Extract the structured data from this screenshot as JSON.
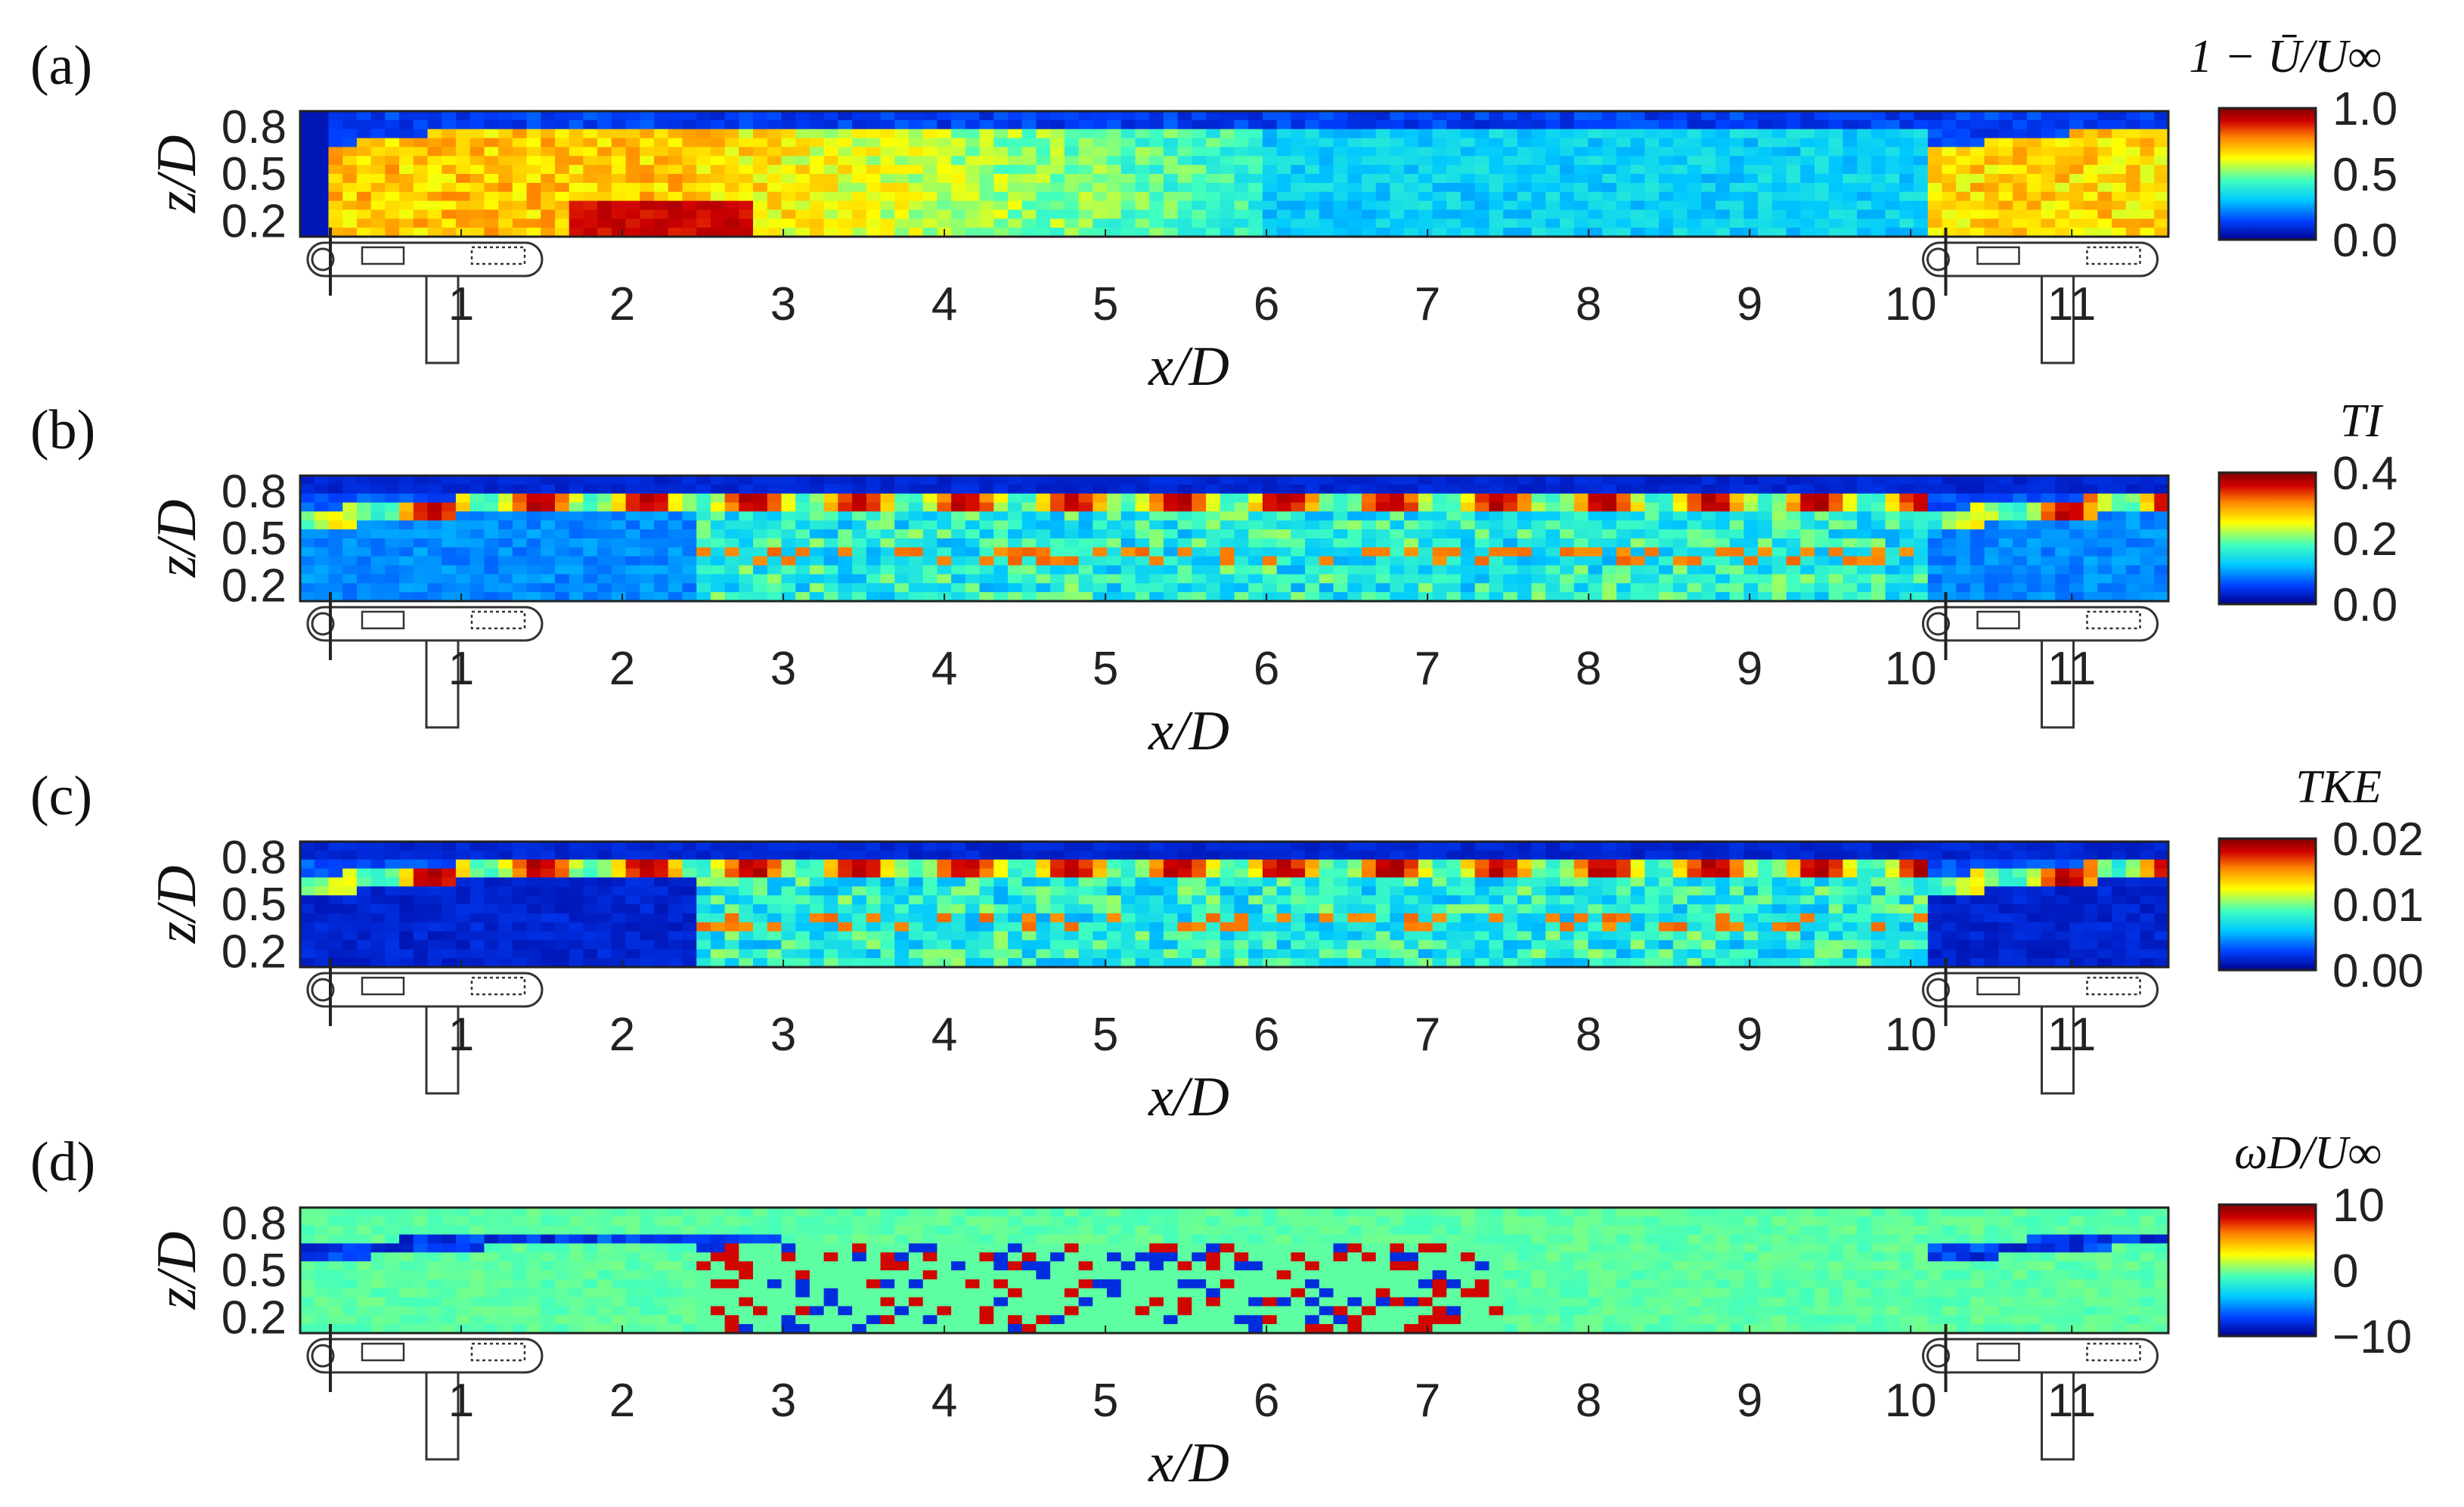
{
  "chart_data": [
    {
      "type": "heatmap",
      "panel_label": "(a)",
      "quantity": "1 − Ū/U∞",
      "xlabel": "x/D",
      "ylabel": "z/D",
      "x_ticks": [
        "1",
        "2",
        "3",
        "4",
        "5",
        "6",
        "7",
        "8",
        "9",
        "10",
        "11"
      ],
      "y_ticks": [
        "0.8",
        "0.5",
        "0.2"
      ],
      "xlim": [
        0.0,
        11.6
      ],
      "ylim": [
        0.1,
        0.9
      ],
      "colorbar": {
        "ticks": [
          "1.0",
          "0.5",
          "0.0"
        ],
        "range": [
          0.0,
          1.0
        ]
      },
      "pattern": "deficit"
    },
    {
      "type": "heatmap",
      "panel_label": "(b)",
      "quantity": "TI",
      "xlabel": "x/D",
      "ylabel": "z/D",
      "x_ticks": [
        "1",
        "2",
        "3",
        "4",
        "5",
        "6",
        "7",
        "8",
        "9",
        "10",
        "11"
      ],
      "y_ticks": [
        "0.8",
        "0.5",
        "0.2"
      ],
      "xlim": [
        0.0,
        11.6
      ],
      "ylim": [
        0.1,
        0.9
      ],
      "colorbar": {
        "ticks": [
          "0.4",
          "0.2",
          "0.0"
        ],
        "range": [
          0.0,
          0.4
        ]
      },
      "pattern": "turbulence"
    },
    {
      "type": "heatmap",
      "panel_label": "(c)",
      "quantity": "TKE",
      "xlabel": "x/D",
      "ylabel": "z/D",
      "x_ticks": [
        "1",
        "2",
        "3",
        "4",
        "5",
        "6",
        "7",
        "8",
        "9",
        "10",
        "11"
      ],
      "y_ticks": [
        "0.8",
        "0.5",
        "0.2"
      ],
      "xlim": [
        0.0,
        11.6
      ],
      "ylim": [
        0.1,
        0.9
      ],
      "colorbar": {
        "ticks": [
          "0.02",
          "0.01",
          "0.00"
        ],
        "range": [
          0.0,
          0.02
        ]
      },
      "pattern": "tke"
    },
    {
      "type": "heatmap",
      "panel_label": "(d)",
      "quantity": "ωD/U∞",
      "xlabel": "x/D",
      "ylabel": "z/D",
      "x_ticks": [
        "1",
        "2",
        "3",
        "4",
        "5",
        "6",
        "7",
        "8",
        "9",
        "10",
        "11"
      ],
      "y_ticks": [
        "0.8",
        "0.5",
        "0.2"
      ],
      "xlim": [
        0.0,
        11.6
      ],
      "ylim": [
        0.1,
        0.9
      ],
      "colorbar": {
        "ticks": [
          "10",
          "0",
          "−10"
        ],
        "range": [
          -10,
          10
        ]
      },
      "pattern": "vorticity"
    }
  ],
  "colormap": [
    "#00008f",
    "#0040ff",
    "#00c8ff",
    "#40ffbf",
    "#ffff00",
    "#ff8000",
    "#d00000",
    "#800000"
  ]
}
